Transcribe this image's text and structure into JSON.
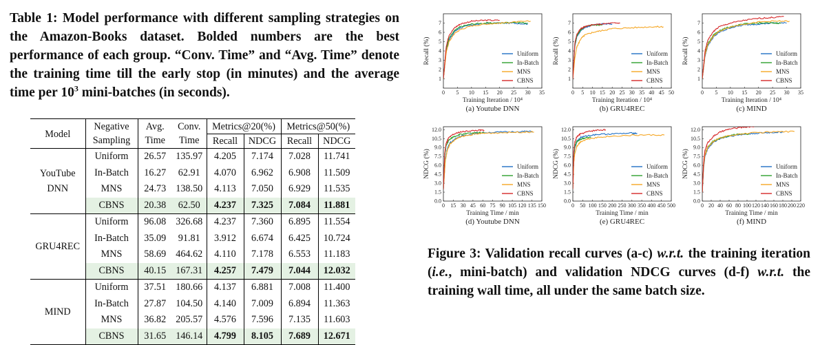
{
  "table": {
    "caption": "Table 1: Model performance with different sampling strategies on the Amazon-Books dataset. Bolded numbers are the best performance of each group. “Conv. Time” and “Avg. Time” denote the training time till the early stop (in minutes) and the average time per",
    "caption_power_base": "10",
    "caption_power_exp": "3",
    "caption_end": "mini-batches (in seconds).",
    "headers": {
      "model": "Model",
      "negative_sampling": [
        "Negative",
        "Sampling"
      ],
      "avg_time": [
        "Avg.",
        "Time"
      ],
      "conv_time": [
        "Conv.",
        "Time"
      ],
      "metrics20": "Metrics@20(%)",
      "metrics50": "Metrics@50(%)",
      "recall": "Recall",
      "ndcg": "NDCG"
    },
    "groups": [
      {
        "model_lines": [
          "YouTube",
          "DNN"
        ],
        "rows": [
          {
            "sampling": "Uniform",
            "avg": "26.57",
            "conv": "135.97",
            "r20": "4.205",
            "n20": "7.174",
            "r50": "7.028",
            "n50": "11.741"
          },
          {
            "sampling": "In-Batch",
            "avg": "16.27",
            "conv": "62.91",
            "r20": "4.070",
            "n20": "6.962",
            "r50": "6.908",
            "n50": "11.509"
          },
          {
            "sampling": "MNS",
            "avg": "24.73",
            "conv": "138.50",
            "r20": "4.113",
            "n20": "7.050",
            "r50": "6.929",
            "n50": "11.535"
          },
          {
            "sampling": "CBNS",
            "avg": "20.38",
            "conv": "62.50",
            "r20": "4.237",
            "n20": "7.325",
            "r50": "7.084",
            "n50": "11.881"
          }
        ]
      },
      {
        "model_lines": [
          "GRU4REC"
        ],
        "rows": [
          {
            "sampling": "Uniform",
            "avg": "96.08",
            "conv": "326.68",
            "r20": "4.237",
            "n20": "7.360",
            "r50": "6.895",
            "n50": "11.554"
          },
          {
            "sampling": "In-Batch",
            "avg": "35.09",
            "conv": "91.81",
            "r20": "3.912",
            "n20": "6.674",
            "r50": "6.425",
            "n50": "10.724"
          },
          {
            "sampling": "MNS",
            "avg": "58.69",
            "conv": "464.62",
            "r20": "4.110",
            "n20": "7.178",
            "r50": "6.553",
            "n50": "11.183"
          },
          {
            "sampling": "CBNS",
            "avg": "40.15",
            "conv": "167.31",
            "r20": "4.257",
            "n20": "7.479",
            "r50": "7.044",
            "n50": "12.032"
          }
        ]
      },
      {
        "model_lines": [
          "MIND"
        ],
        "rows": [
          {
            "sampling": "Uniform",
            "avg": "37.51",
            "conv": "180.66",
            "r20": "4.137",
            "n20": "6.881",
            "r50": "7.008",
            "n50": "11.400"
          },
          {
            "sampling": "In-Batch",
            "avg": "27.87",
            "conv": "104.50",
            "r20": "4.140",
            "n20": "7.009",
            "r50": "6.894",
            "n50": "11.363"
          },
          {
            "sampling": "MNS",
            "avg": "36.82",
            "conv": "205.57",
            "r20": "4.576",
            "n20": "7.596",
            "r50": "7.135",
            "n50": "11.603"
          },
          {
            "sampling": "CBNS",
            "avg": "31.65",
            "conv": "146.14",
            "r20": "4.799",
            "n20": "8.105",
            "r50": "7.689",
            "n50": "12.671"
          }
        ]
      }
    ]
  },
  "figure": {
    "caption_parts": [
      {
        "t": "Figure 3: Validation recall curves (a-c) ",
        "i": false
      },
      {
        "t": "w.r.t.",
        "i": true
      },
      {
        "t": " the training iteration (",
        "i": false
      },
      {
        "t": "i.e.",
        "i": true
      },
      {
        "t": ", mini-batch) and validation NDCG curves (d-f) ",
        "i": false
      },
      {
        "t": "w.r.t.",
        "i": true
      },
      {
        "t": " the training wall time, all under the same batch size.",
        "i": false
      }
    ]
  },
  "colors": {
    "Uniform": "#1f6fc4",
    "In-Batch": "#2ca02c",
    "MNS": "#f5a623",
    "CBNS": "#d62728"
  },
  "chart_data": [
    {
      "type": "line",
      "panel": "(a) Youtube DNN",
      "xlabel": "Training Iteration / 10⁴",
      "ylabel": "Recall (%)",
      "xlim": [
        0,
        35
      ],
      "ylim": [
        0,
        8
      ],
      "xticks": [
        "0",
        "5",
        "10",
        "15",
        "20",
        "25",
        "30",
        "35"
      ],
      "yticks": [
        "1",
        "2",
        "3",
        "4",
        "5",
        "6",
        "7"
      ],
      "legend": [
        "Uniform",
        "In-Batch",
        "MNS",
        "CBNS"
      ],
      "series": [
        {
          "name": "Uniform",
          "x": [
            0,
            1,
            2,
            4,
            6,
            10,
            15,
            20,
            25,
            30
          ],
          "y": [
            1.0,
            4.0,
            5.2,
            6.1,
            6.5,
            6.8,
            6.95,
            7.0,
            7.0,
            6.9
          ]
        },
        {
          "name": "In-Batch",
          "x": [
            0,
            1,
            2,
            4,
            6,
            10,
            15,
            20,
            25,
            30
          ],
          "y": [
            1.0,
            4.2,
            5.4,
            6.2,
            6.6,
            6.9,
            7.0,
            7.0,
            7.1,
            7.0
          ]
        },
        {
          "name": "MNS",
          "x": [
            0,
            1,
            2,
            4,
            6,
            10,
            15,
            20,
            25,
            31
          ],
          "y": [
            1.0,
            3.8,
            5.0,
            5.9,
            6.3,
            6.7,
            6.9,
            7.0,
            7.1,
            7.2
          ]
        },
        {
          "name": "CBNS",
          "x": [
            0,
            1,
            2,
            4,
            6,
            10,
            15,
            20
          ],
          "y": [
            1.0,
            4.5,
            5.7,
            6.5,
            6.9,
            7.2,
            7.3,
            7.3
          ]
        }
      ]
    },
    {
      "type": "line",
      "panel": "(b) GRU4REC",
      "xlabel": "Training Iteration / 10⁴",
      "ylabel": "Recall (%)",
      "xlim": [
        0,
        50
      ],
      "ylim": [
        0,
        8
      ],
      "xticks": [
        "0",
        "5",
        "10",
        "15",
        "20",
        "25",
        "30",
        "35",
        "40",
        "45",
        "50"
      ],
      "yticks": [
        "1",
        "2",
        "3",
        "4",
        "5",
        "6",
        "7"
      ],
      "legend": [
        "Uniform",
        "In-Batch",
        "MNS",
        "CBNS"
      ],
      "series": [
        {
          "name": "Uniform",
          "x": [
            0,
            1,
            2,
            4,
            6,
            10,
            15,
            20
          ],
          "y": [
            1.0,
            4.5,
            5.5,
            6.2,
            6.5,
            6.8,
            6.9,
            6.9
          ]
        },
        {
          "name": "In-Batch",
          "x": [
            0,
            1,
            2,
            4,
            6,
            10,
            15
          ],
          "y": [
            1.0,
            4.6,
            5.6,
            6.3,
            6.6,
            6.8,
            6.8
          ]
        },
        {
          "name": "MNS",
          "x": [
            0,
            1,
            2,
            4,
            6,
            10,
            15,
            20,
            30,
            40,
            46
          ],
          "y": [
            1.0,
            3.2,
            4.4,
            5.3,
            5.7,
            6.0,
            6.2,
            6.4,
            6.5,
            6.6,
            6.6
          ]
        },
        {
          "name": "CBNS",
          "x": [
            0,
            1,
            2,
            4,
            6,
            10,
            15,
            20,
            24
          ],
          "y": [
            1.0,
            4.8,
            5.8,
            6.4,
            6.6,
            6.8,
            6.9,
            7.0,
            7.0
          ]
        }
      ]
    },
    {
      "type": "line",
      "panel": "(c) MIND",
      "xlabel": "Training Iteration / 10⁴",
      "ylabel": "Recall (%)",
      "xlim": [
        0,
        35
      ],
      "ylim": [
        0,
        8
      ],
      "xticks": [
        "0",
        "5",
        "10",
        "15",
        "20",
        "25",
        "30",
        "35"
      ],
      "yticks": [
        "1",
        "2",
        "3",
        "4",
        "5",
        "6",
        "7"
      ],
      "legend": [
        "Uniform",
        "In-Batch",
        "MNS",
        "CBNS"
      ],
      "series": [
        {
          "name": "Uniform",
          "x": [
            0,
            1,
            2,
            4,
            6,
            10,
            15,
            20,
            25,
            30
          ],
          "y": [
            1.0,
            3.5,
            4.6,
            5.5,
            6.0,
            6.5,
            6.8,
            6.9,
            7.0,
            7.0
          ]
        },
        {
          "name": "In-Batch",
          "x": [
            0,
            1,
            2,
            4,
            6,
            10,
            15,
            20,
            25,
            28
          ],
          "y": [
            1.0,
            3.7,
            4.8,
            5.7,
            6.2,
            6.6,
            6.9,
            7.0,
            7.0,
            7.0
          ]
        },
        {
          "name": "MNS",
          "x": [
            0,
            1,
            2,
            4,
            6,
            10,
            15,
            20,
            25,
            31
          ],
          "y": [
            1.0,
            3.6,
            4.7,
            5.6,
            6.1,
            6.6,
            6.9,
            7.1,
            7.2,
            7.2
          ]
        },
        {
          "name": "CBNS",
          "x": [
            0,
            1,
            2,
            4,
            6,
            10,
            15,
            20,
            25,
            29
          ],
          "y": [
            1.0,
            4.0,
            5.2,
            6.1,
            6.6,
            7.0,
            7.3,
            7.5,
            7.6,
            7.7
          ]
        }
      ]
    },
    {
      "type": "line",
      "panel": "(d) Youtube DNN",
      "xlabel": "Training Time / min",
      "ylabel": "NDCG (%)",
      "xlim": [
        0,
        150
      ],
      "ylim": [
        0,
        12.5
      ],
      "xticks": [
        "0",
        "15",
        "30",
        "45",
        "60",
        "75",
        "90",
        "105",
        "120",
        "135",
        "150"
      ],
      "yticks": [
        "0.0",
        "1.5",
        "3.0",
        "4.5",
        "6.0",
        "7.5",
        "9.0",
        "10.5",
        "12.0"
      ],
      "legend": [
        "Uniform",
        "In-Batch",
        "MNS",
        "CBNS"
      ],
      "series": [
        {
          "name": "Uniform",
          "x": [
            0,
            3,
            6,
            10,
            20,
            30,
            45,
            60,
            90,
            120,
            136
          ],
          "y": [
            2.0,
            7.0,
            8.8,
            9.8,
            10.6,
            11.0,
            11.3,
            11.5,
            11.6,
            11.7,
            11.7
          ]
        },
        {
          "name": "In-Batch",
          "x": [
            0,
            2,
            4,
            8,
            15,
            25,
            40,
            55,
            63
          ],
          "y": [
            2.0,
            7.5,
            9.2,
            10.2,
            10.8,
            11.2,
            11.4,
            11.5,
            11.5
          ]
        },
        {
          "name": "MNS",
          "x": [
            0,
            3,
            6,
            10,
            20,
            30,
            45,
            60,
            90,
            120,
            138
          ],
          "y": [
            2.0,
            6.8,
            8.6,
            9.6,
            10.5,
            10.9,
            11.2,
            11.4,
            11.5,
            11.6,
            11.6
          ]
        },
        {
          "name": "CBNS",
          "x": [
            0,
            2,
            4,
            8,
            15,
            25,
            40,
            55,
            62
          ],
          "y": [
            2.0,
            8.0,
            9.6,
            10.6,
            11.2,
            11.6,
            11.8,
            11.9,
            11.9
          ]
        }
      ]
    },
    {
      "type": "line",
      "panel": "(e) GRU4REC",
      "xlabel": "Training Time / min",
      "ylabel": "NDCG (%)",
      "xlim": [
        0,
        500
      ],
      "ylim": [
        0,
        12.5
      ],
      "xticks": [
        "0",
        "50",
        "100",
        "150",
        "200",
        "250",
        "300",
        "350",
        "400",
        "450",
        "500"
      ],
      "yticks": [
        "0.0",
        "1.5",
        "3.0",
        "4.5",
        "6.0",
        "7.5",
        "9.0",
        "10.5",
        "12.0"
      ],
      "legend": [
        "Uniform",
        "In-Batch",
        "MNS",
        "CBNS"
      ],
      "series": [
        {
          "name": "Uniform",
          "x": [
            0,
            5,
            10,
            20,
            40,
            80,
            120,
            200,
            300,
            327
          ],
          "y": [
            2.0,
            7.5,
            9.0,
            10.0,
            10.7,
            11.0,
            11.2,
            11.3,
            11.4,
            11.4
          ]
        },
        {
          "name": "In-Batch",
          "x": [
            0,
            5,
            10,
            20,
            40,
            60,
            92
          ],
          "y": [
            2.0,
            7.8,
            9.2,
            10.0,
            10.4,
            10.6,
            10.7
          ]
        },
        {
          "name": "MNS",
          "x": [
            0,
            5,
            10,
            20,
            40,
            80,
            150,
            250,
            350,
            465
          ],
          "y": [
            2.0,
            6.5,
            8.0,
            9.2,
            10.0,
            10.5,
            10.8,
            11.0,
            11.1,
            11.1
          ]
        },
        {
          "name": "CBNS",
          "x": [
            0,
            5,
            10,
            20,
            40,
            80,
            120,
            167
          ],
          "y": [
            2.0,
            8.2,
            9.8,
            10.8,
            11.3,
            11.7,
            11.9,
            12.0
          ]
        }
      ]
    },
    {
      "type": "line",
      "panel": "(f) MIND",
      "xlabel": "Training Time / min",
      "ylabel": "NDCG (%)",
      "xlim": [
        0,
        220
      ],
      "ylim": [
        0,
        12.5
      ],
      "xticks": [
        "0",
        "20",
        "40",
        "60",
        "80",
        "100",
        "120",
        "140",
        "160",
        "180",
        "200",
        "220"
      ],
      "yticks": [
        "0.0",
        "1.5",
        "3.0",
        "4.5",
        "6.0",
        "7.5",
        "9.0",
        "10.5",
        "12.0"
      ],
      "legend": [
        "Uniform",
        "In-Batch",
        "MNS",
        "CBNS"
      ],
      "series": [
        {
          "name": "Uniform",
          "x": [
            0,
            3,
            6,
            12,
            25,
            40,
            60,
            90,
            120,
            150,
            181
          ],
          "y": [
            1.5,
            5.5,
            7.5,
            8.8,
            9.9,
            10.5,
            10.9,
            11.2,
            11.4,
            11.5,
            11.6
          ]
        },
        {
          "name": "In-Batch",
          "x": [
            0,
            3,
            6,
            12,
            25,
            40,
            60,
            80,
            105
          ],
          "y": [
            1.5,
            6.0,
            7.9,
            9.1,
            10.1,
            10.6,
            11.0,
            11.2,
            11.3
          ]
        },
        {
          "name": "MNS",
          "x": [
            0,
            3,
            6,
            12,
            25,
            40,
            60,
            100,
            150,
            206
          ],
          "y": [
            1.5,
            5.8,
            7.8,
            9.0,
            10.0,
            10.6,
            11.0,
            11.4,
            11.6,
            11.7
          ]
        },
        {
          "name": "CBNS",
          "x": [
            0,
            3,
            6,
            12,
            25,
            40,
            60,
            90,
            120,
            146
          ],
          "y": [
            1.5,
            6.5,
            8.5,
            9.8,
            10.9,
            11.6,
            12.1,
            12.4,
            12.6,
            12.7
          ]
        }
      ]
    }
  ]
}
